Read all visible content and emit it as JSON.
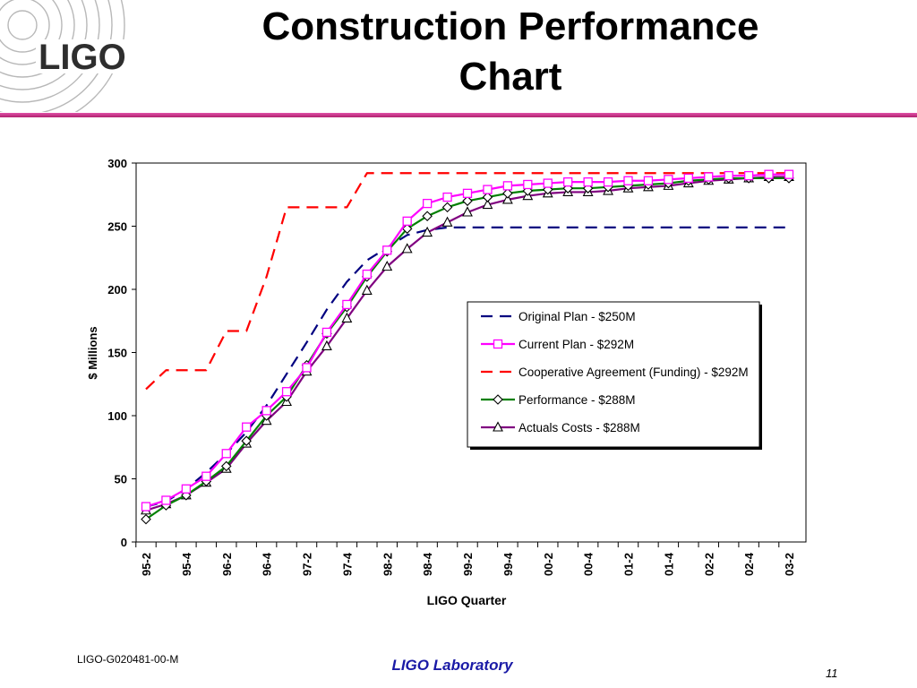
{
  "slide": {
    "title_line1": "Construction Performance",
    "title_line2": "Chart",
    "logo_text": "LIGO",
    "footer_id": "LIGO-G020481-00-M",
    "footer_lab": "LIGO Laboratory",
    "page_number": "11",
    "rule_color": "#c83090"
  },
  "chart_data": {
    "type": "line",
    "title": "",
    "xlabel": "LIGO Quarter",
    "ylabel": "$ Millions",
    "ylim": [
      0,
      300
    ],
    "yticks": [
      0,
      50,
      100,
      150,
      200,
      250,
      300
    ],
    "x": [
      "95-2",
      "95-3",
      "95-4",
      "96-1",
      "96-2",
      "96-3",
      "96-4",
      "97-1",
      "97-2",
      "97-3",
      "97-4",
      "98-1",
      "98-2",
      "98-3",
      "98-4",
      "99-1",
      "99-2",
      "99-3",
      "99-4",
      "00-1",
      "00-2",
      "00-3",
      "00-4",
      "01-1",
      "01-2",
      "01-3",
      "01-4",
      "02-1",
      "02-2",
      "02-3",
      "02-4",
      "03-1",
      "03-2"
    ],
    "tick_labels": [
      "95-2",
      "95-4",
      "96-2",
      "96-4",
      "97-2",
      "97-4",
      "98-2",
      "98-4",
      "99-2",
      "99-4",
      "00-2",
      "00-4",
      "01-2",
      "01-4",
      "02-2",
      "02-4",
      "03-2"
    ],
    "grid": false,
    "legend_position": "right-center",
    "series": [
      {
        "name": "Original Plan - $250M",
        "color": "#000080",
        "style": "dashed",
        "marker": "none",
        "values": [
          28,
          32,
          42,
          55,
          70,
          87,
          108,
          133,
          158,
          184,
          206,
          223,
          233,
          243,
          247,
          249,
          249,
          249,
          249,
          249,
          249,
          249,
          249,
          249,
          249,
          249,
          249,
          249,
          249,
          249,
          249,
          249,
          249
        ]
      },
      {
        "name": "Current Plan - $292M",
        "color": "#ff00ff",
        "style": "solid",
        "marker": "square",
        "values": [
          28,
          33,
          42,
          52,
          70,
          91,
          104,
          119,
          138,
          166,
          188,
          212,
          231,
          254,
          268,
          273,
          276,
          279,
          282,
          283,
          284,
          285,
          285,
          285,
          286,
          286,
          287,
          288,
          289,
          290,
          290,
          291,
          291
        ]
      },
      {
        "name": "Cooperative Agreement (Funding) - $292M",
        "color": "#ff0000",
        "style": "dashed",
        "marker": "none",
        "values": [
          121,
          136,
          136,
          136,
          167,
          167,
          210,
          265,
          265,
          265,
          265,
          292,
          292,
          292,
          292,
          292,
          292,
          292,
          292,
          292,
          292,
          292,
          292,
          292,
          292,
          292,
          292,
          292,
          292,
          292,
          292,
          292,
          292
        ]
      },
      {
        "name": "Performance - $288M",
        "color": "#008000",
        "style": "solid",
        "marker": "diamond",
        "values": [
          18,
          29,
          37,
          48,
          60,
          80,
          100,
          115,
          140,
          165,
          186,
          210,
          230,
          248,
          258,
          265,
          270,
          273,
          276,
          278,
          279,
          280,
          280,
          281,
          282,
          283,
          284,
          286,
          287,
          288,
          288,
          288,
          288
        ]
      },
      {
        "name": "Actuals Costs - $288M",
        "color": "#800080",
        "style": "solid",
        "marker": "triangle",
        "values": [
          25,
          30,
          37,
          47,
          58,
          78,
          96,
          111,
          135,
          155,
          177,
          199,
          218,
          232,
          245,
          253,
          261,
          267,
          271,
          274,
          276,
          277,
          277,
          278,
          280,
          281,
          282,
          284,
          286,
          287,
          288,
          289,
          289
        ]
      }
    ]
  }
}
